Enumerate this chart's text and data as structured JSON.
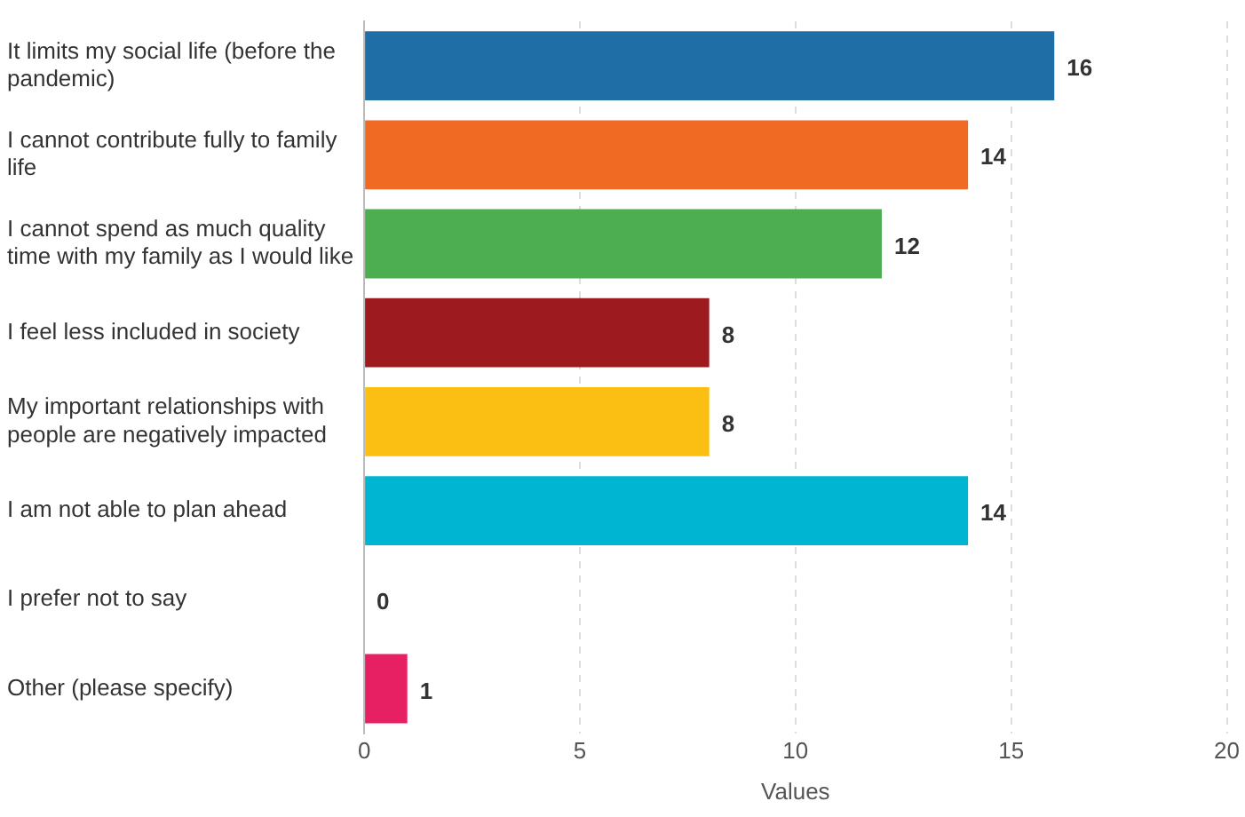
{
  "chart_data": {
    "type": "bar",
    "orientation": "horizontal",
    "xlabel": "Values",
    "categories": [
      "It limits my social life (before the pandemic)",
      "I cannot contribute fully to family life",
      "I cannot spend as much quality time with my family as I would like",
      "I feel less included in society",
      "My important relationships with people are negatively impacted",
      "I am not able to plan ahead",
      "I prefer not to say",
      "Other (please specify)"
    ],
    "values": [
      16,
      14,
      12,
      8,
      8,
      14,
      0,
      1
    ],
    "colors": [
      "#1f6ea6",
      "#f06a24",
      "#4cae50",
      "#9d1a1e",
      "#fbbe13",
      "#00b5d1",
      "#9e9e9e",
      "#e71f63"
    ],
    "xlim": [
      0,
      20
    ],
    "xticks": [
      0,
      5,
      10,
      15,
      20
    ],
    "grid": "x",
    "data_labels": true,
    "legend": false
  }
}
